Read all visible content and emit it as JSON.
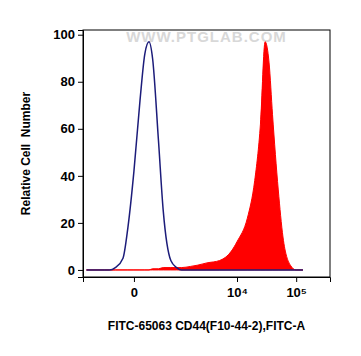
{
  "chart_data": {
    "type": "line",
    "x_label": "FITC-65063 CD44(F10-44-2),FITC-A",
    "y_label": "Relative Cell  Number",
    "annotations": [
      {
        "text": "WWW.PTGLAB.COM"
      }
    ],
    "log": "x",
    "x": [
      -1000,
      -600,
      -400,
      -300,
      -200,
      -100,
      -50,
      0,
      50,
      100,
      150,
      200,
      300,
      400,
      600,
      800,
      1000,
      1500,
      2000,
      3000,
      5000,
      8000,
      10000,
      15000,
      20000,
      25000,
      30000,
      35000,
      40000,
      50000,
      60000,
      80000,
      100000,
      130000
    ],
    "series": [
      {
        "type": "area",
        "color": "#ff0000",
        "values": [
          0,
          0,
          0,
          0,
          0,
          0,
          0,
          0,
          0,
          0,
          0,
          0.5,
          0.5,
          1,
          1,
          1,
          1,
          1.5,
          2,
          3,
          4,
          8,
          12,
          22,
          38,
          62,
          97,
          88,
          66,
          34,
          14,
          2,
          0,
          0
        ]
      },
      {
        "type": "line",
        "color": "#1c1c7a",
        "values": [
          0,
          0,
          0,
          0,
          1,
          5,
          18,
          42,
          72,
          92,
          97,
          90,
          55,
          25,
          4,
          1,
          0,
          0,
          0,
          0,
          0,
          0,
          0,
          0,
          0,
          0,
          0,
          0,
          0,
          0,
          0,
          0,
          0,
          0
        ]
      }
    ],
    "xlim": [
      -1170,
      370000
    ],
    "xticks": [
      0,
      {
        "value": 10000,
        "label": "10⁴"
      },
      {
        "value": 100000,
        "label": "10⁵"
      }
    ],
    "ylim": [
      -3,
      102
    ],
    "yticks": [
      0,
      20,
      40,
      60,
      80,
      100
    ],
    "grid": false
  }
}
